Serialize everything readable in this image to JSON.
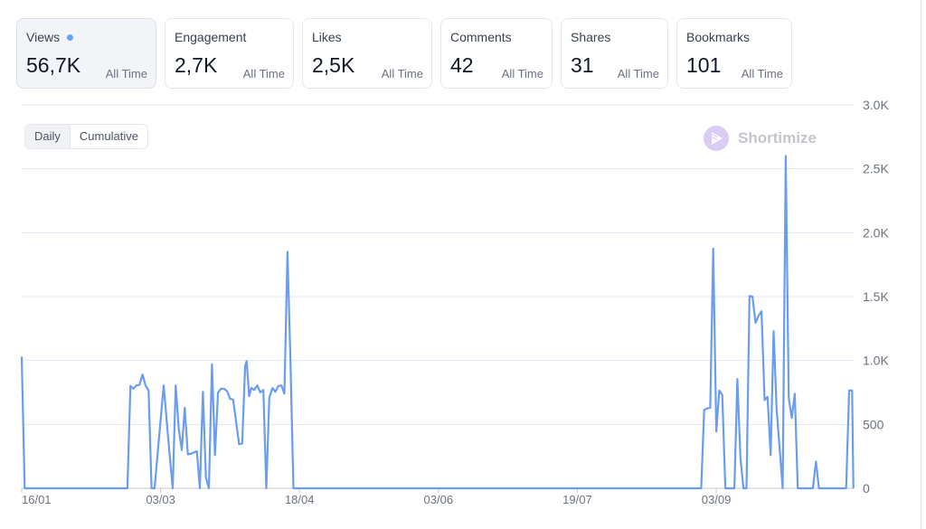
{
  "metrics": [
    {
      "label": "Views",
      "value": "56,7K",
      "period": "All Time",
      "active": true
    },
    {
      "label": "Engagement",
      "value": "2,7K",
      "period": "All Time"
    },
    {
      "label": "Likes",
      "value": "2,5K",
      "period": "All Time"
    },
    {
      "label": "Comments",
      "value": "42",
      "period": "All Time"
    },
    {
      "label": "Shares",
      "value": "31",
      "period": "All Time"
    },
    {
      "label": "Bookmarks",
      "value": "101",
      "period": "All Time"
    }
  ],
  "toggle": {
    "daily": "Daily",
    "cumulative": "Cumulative",
    "selected": "Daily"
  },
  "brand": {
    "name": "Shortimize",
    "logo_color": "#d9ccf5"
  },
  "colors": {
    "line": "#6a9cef",
    "grid": "#e3e6f3",
    "accent_dot": "#60a5fa"
  },
  "chart_data": {
    "type": "line",
    "title": "Views",
    "xlabel": "",
    "ylabel": "",
    "xlim": [
      0,
      275.5
    ],
    "ylim": [
      0,
      3000
    ],
    "grid": true,
    "yticks": [
      {
        "v": 0,
        "label": "0"
      },
      {
        "v": 500,
        "label": "500"
      },
      {
        "v": 1000,
        "label": "1.0K"
      },
      {
        "v": 1500,
        "label": "1.5K"
      },
      {
        "v": 2000,
        "label": "2.0K"
      },
      {
        "v": 2500,
        "label": "2.5K"
      },
      {
        "v": 3000,
        "label": "3.0K"
      }
    ],
    "xticks": [
      {
        "day": 0,
        "label": "16/01"
      },
      {
        "day": 46,
        "label": "03/03"
      },
      {
        "day": 92,
        "label": "18/04"
      },
      {
        "day": 138,
        "label": "03/06"
      },
      {
        "day": 184,
        "label": "19/07"
      },
      {
        "day": 230,
        "label": "03/09"
      }
    ],
    "series": [
      {
        "name": "Views (daily)",
        "points": [
          [
            0,
            1030
          ],
          [
            1,
            0
          ],
          [
            35,
            0
          ],
          [
            36,
            800
          ],
          [
            37,
            780
          ],
          [
            38,
            805
          ],
          [
            39,
            810
          ],
          [
            40,
            890
          ],
          [
            41,
            805
          ],
          [
            42,
            765
          ],
          [
            43,
            0
          ],
          [
            44,
            0
          ],
          [
            47,
            805
          ],
          [
            49,
            260
          ],
          [
            50,
            0
          ],
          [
            51,
            805
          ],
          [
            52,
            470
          ],
          [
            53,
            300
          ],
          [
            54,
            630
          ],
          [
            55,
            265
          ],
          [
            56,
            270
          ],
          [
            58,
            290
          ],
          [
            59,
            0
          ],
          [
            60,
            755
          ],
          [
            61,
            85
          ],
          [
            62,
            0
          ],
          [
            63,
            970
          ],
          [
            64,
            260
          ],
          [
            65,
            750
          ],
          [
            66,
            780
          ],
          [
            67,
            780
          ],
          [
            68,
            760
          ],
          [
            69,
            700
          ],
          [
            70,
            695
          ],
          [
            72,
            345
          ],
          [
            73,
            350
          ],
          [
            74,
            960
          ],
          [
            74.5,
            995
          ],
          [
            75.3,
            720
          ],
          [
            76,
            785
          ],
          [
            77,
            770
          ],
          [
            78,
            805
          ],
          [
            79,
            750
          ],
          [
            80,
            770
          ],
          [
            81,
            0
          ],
          [
            82,
            710
          ],
          [
            83,
            785
          ],
          [
            84,
            755
          ],
          [
            85,
            800
          ],
          [
            86,
            805
          ],
          [
            87,
            740
          ],
          [
            88,
            1850
          ],
          [
            89,
            990
          ],
          [
            90,
            0
          ],
          [
            225,
            0
          ],
          [
            226,
            615
          ],
          [
            227,
            625
          ],
          [
            228,
            630
          ],
          [
            229,
            1875
          ],
          [
            230,
            445
          ],
          [
            231,
            765
          ],
          [
            232,
            730
          ],
          [
            233,
            0
          ],
          [
            236,
            0
          ],
          [
            237,
            855
          ],
          [
            238,
            240
          ],
          [
            239,
            0
          ],
          [
            240,
            0
          ],
          [
            241,
            1505
          ],
          [
            242,
            1500
          ],
          [
            243,
            1295
          ],
          [
            244,
            1350
          ],
          [
            245,
            1385
          ],
          [
            246,
            690
          ],
          [
            247,
            715
          ],
          [
            248,
            260
          ],
          [
            249,
            1230
          ],
          [
            250,
            620
          ],
          [
            252,
            0
          ],
          [
            253,
            2600
          ],
          [
            254,
            710
          ],
          [
            255,
            550
          ],
          [
            256,
            740
          ],
          [
            257,
            0
          ],
          [
            262,
            0
          ],
          [
            263,
            210
          ],
          [
            264,
            0
          ],
          [
            273,
            0
          ],
          [
            274,
            765
          ],
          [
            275,
            765
          ],
          [
            275.4,
            0
          ]
        ]
      }
    ]
  }
}
